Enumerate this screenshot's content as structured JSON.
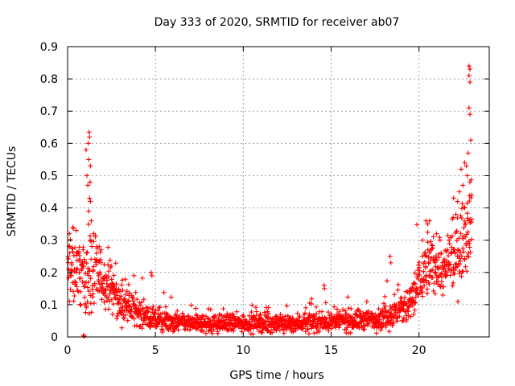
{
  "chart_data": {
    "type": "scatter",
    "title": "Day 333 of 2020, SRMTID for receiver ab07",
    "xlabel": "GPS time / hours",
    "ylabel": "SRMTID / TECUs",
    "xlim": [
      0,
      24.0
    ],
    "ylim": [
      0,
      0.9
    ],
    "x_ticks": [
      0,
      5,
      10,
      15,
      20
    ],
    "y_ticks": [
      0,
      0.1,
      0.2,
      0.3,
      0.4,
      0.5,
      0.6,
      0.7,
      0.8,
      0.9
    ],
    "x_tick_labels": [
      "0",
      "5",
      "10",
      "15",
      "20"
    ],
    "y_tick_labels": [
      "0",
      "0.1",
      "0.2",
      "0.3",
      "0.4",
      "0.5",
      "0.6",
      "0.7",
      "0.8",
      "0.9"
    ],
    "grid": true,
    "marker": "+",
    "color": "#ff0000",
    "series": [
      {
        "name": "SRMTID",
        "envelope_hours": [
          0,
          0.5,
          1.0,
          1.3,
          1.8,
          2.5,
          3.0,
          4.0,
          5.0,
          6.0,
          8.0,
          10.0,
          12.0,
          14.0,
          16.0,
          17.5,
          18.5,
          19.5,
          20.0,
          20.5,
          21.0,
          21.5,
          22.0,
          22.5,
          23.0
        ],
        "envelope_typical_tecu": [
          0.2,
          0.22,
          0.18,
          0.2,
          0.18,
          0.15,
          0.1,
          0.08,
          0.05,
          0.045,
          0.04,
          0.045,
          0.04,
          0.045,
          0.05,
          0.055,
          0.07,
          0.1,
          0.17,
          0.22,
          0.22,
          0.2,
          0.25,
          0.3,
          0.4
        ],
        "envelope_spread_tecu": [
          0.1,
          0.1,
          0.08,
          0.12,
          0.07,
          0.06,
          0.05,
          0.04,
          0.03,
          0.025,
          0.025,
          0.025,
          0.025,
          0.025,
          0.03,
          0.03,
          0.04,
          0.06,
          0.08,
          0.08,
          0.07,
          0.07,
          0.1,
          0.12,
          0.12
        ],
        "notable_points": [
          {
            "x": 1.22,
            "y": 0.635
          },
          {
            "x": 1.25,
            "y": 0.62
          },
          {
            "x": 1.18,
            "y": 0.6
          },
          {
            "x": 1.05,
            "y": 0.58
          },
          {
            "x": 1.2,
            "y": 0.55
          },
          {
            "x": 1.3,
            "y": 0.53
          },
          {
            "x": 1.1,
            "y": 0.5
          },
          {
            "x": 1.28,
            "y": 0.48
          },
          {
            "x": 1.15,
            "y": 0.47
          },
          {
            "x": 1.25,
            "y": 0.43
          },
          {
            "x": 1.3,
            "y": 0.42
          },
          {
            "x": 1.2,
            "y": 0.39
          },
          {
            "x": 1.35,
            "y": 0.36
          },
          {
            "x": 0.9,
            "y": 0.005
          },
          {
            "x": 0.95,
            "y": 0.002
          },
          {
            "x": 4.75,
            "y": 0.2
          },
          {
            "x": 4.8,
            "y": 0.19
          },
          {
            "x": 14.6,
            "y": 0.16
          },
          {
            "x": 14.62,
            "y": 0.15
          },
          {
            "x": 18.35,
            "y": 0.25
          },
          {
            "x": 18.4,
            "y": 0.23
          },
          {
            "x": 22.85,
            "y": 0.84
          },
          {
            "x": 22.9,
            "y": 0.83
          },
          {
            "x": 22.85,
            "y": 0.81
          },
          {
            "x": 22.9,
            "y": 0.79
          },
          {
            "x": 22.85,
            "y": 0.71
          },
          {
            "x": 22.9,
            "y": 0.69
          },
          {
            "x": 22.95,
            "y": 0.61
          },
          {
            "x": 22.8,
            "y": 0.57
          },
          {
            "x": 22.6,
            "y": 0.54
          },
          {
            "x": 22.7,
            "y": 0.53
          },
          {
            "x": 22.4,
            "y": 0.52
          },
          {
            "x": 22.75,
            "y": 0.5
          },
          {
            "x": 22.9,
            "y": 0.48
          },
          {
            "x": 22.5,
            "y": 0.47
          },
          {
            "x": 22.3,
            "y": 0.45
          },
          {
            "x": 23.0,
            "y": 0.44
          },
          {
            "x": 22.2,
            "y": 0.42
          },
          {
            "x": 22.6,
            "y": 0.4
          },
          {
            "x": 21.95,
            "y": 0.37
          },
          {
            "x": 22.8,
            "y": 0.36
          },
          {
            "x": 20.4,
            "y": 0.36
          },
          {
            "x": 20.6,
            "y": 0.36
          },
          {
            "x": 20.5,
            "y": 0.35
          },
          {
            "x": 20.2,
            "y": 0.3
          },
          {
            "x": 21.0,
            "y": 0.32
          },
          {
            "x": 21.2,
            "y": 0.3
          },
          {
            "x": 0.3,
            "y": 0.34
          },
          {
            "x": 0.5,
            "y": 0.33
          },
          {
            "x": 0.1,
            "y": 0.32
          },
          {
            "x": 1.8,
            "y": 0.28
          },
          {
            "x": 1.9,
            "y": 0.27
          }
        ]
      }
    ]
  }
}
